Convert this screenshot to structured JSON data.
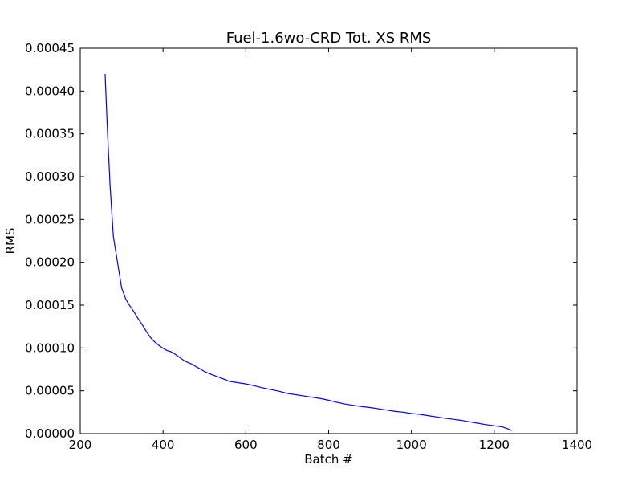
{
  "chart_data": {
    "type": "line",
    "title": "Fuel-1.6wo-CRD Tot. XS RMS",
    "xlabel": "Batch #",
    "ylabel": "RMS",
    "xlim": [
      200,
      1400
    ],
    "ylim": [
      0,
      0.00045
    ],
    "xticks": [
      "200",
      "400",
      "600",
      "800",
      "1000",
      "1200",
      "1400"
    ],
    "yticks": [
      "0.00000",
      "0.00005",
      "0.00010",
      "0.00015",
      "0.00020",
      "0.00025",
      "0.00030",
      "0.00035",
      "0.00040",
      "0.00045"
    ],
    "grid": false,
    "legend": "none",
    "line_color": "#0000ff",
    "series": [
      {
        "x": [
          260,
          266,
          272,
          280,
          290,
          300,
          310,
          320,
          330,
          340,
          350,
          360,
          370,
          380,
          390,
          400,
          410,
          420,
          430,
          440,
          450,
          460,
          470,
          480,
          490,
          500,
          520,
          540,
          560,
          580,
          600,
          620,
          640,
          660,
          680,
          700,
          720,
          740,
          760,
          780,
          800,
          820,
          840,
          860,
          880,
          900,
          920,
          940,
          960,
          980,
          1000,
          1020,
          1040,
          1060,
          1080,
          1100,
          1120,
          1140,
          1160,
          1180,
          1200,
          1220,
          1232,
          1242
        ],
        "y": [
          0.00042,
          0.00035,
          0.00029,
          0.00023,
          0.0002,
          0.00017,
          0.000157,
          0.000149,
          0.000142,
          0.000134,
          0.000127,
          0.000119,
          0.000112,
          0.000107,
          0.000103,
          9.95e-05,
          9.7e-05,
          9.55e-05,
          9.25e-05,
          8.9e-05,
          8.55e-05,
          8.3e-05,
          8.1e-05,
          7.8e-05,
          7.55e-05,
          7.25e-05,
          6.85e-05,
          6.5e-05,
          6.1e-05,
          5.95e-05,
          5.8e-05,
          5.6e-05,
          5.35e-05,
          5.15e-05,
          4.95e-05,
          4.7e-05,
          4.55e-05,
          4.4e-05,
          4.25e-05,
          4.1e-05,
          3.9e-05,
          3.65e-05,
          3.45e-05,
          3.3e-05,
          3.15e-05,
          3.05e-05,
          2.9e-05,
          2.75e-05,
          2.6e-05,
          2.5e-05,
          2.35e-05,
          2.25e-05,
          2.1e-05,
          1.95e-05,
          1.8e-05,
          1.68e-05,
          1.55e-05,
          1.38e-05,
          1.22e-05,
          1.05e-05,
          9.2e-06,
          7.8e-06,
          5.8e-06,
          3.6e-06
        ]
      }
    ]
  }
}
